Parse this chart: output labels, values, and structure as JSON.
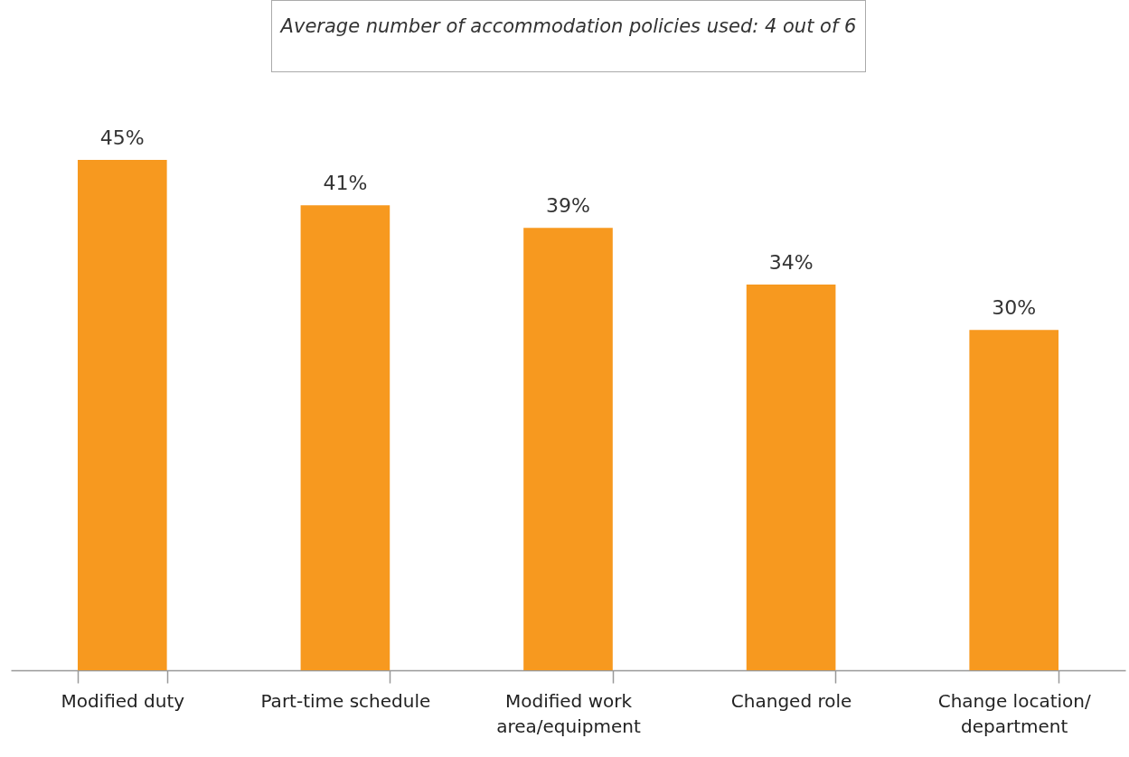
{
  "chart_data": {
    "type": "bar",
    "annotations": [
      "Average number of accommodation policies used: 4 out of 6"
    ],
    "categories": [
      "Modified duty",
      "Part-time schedule",
      "Modified work area/equipment",
      "Changed role",
      "Change location/ department"
    ],
    "values": [
      45,
      41,
      39,
      34,
      30
    ],
    "value_labels": [
      "45%",
      "41%",
      "39%",
      "34%",
      "30%"
    ],
    "color": "#f7991f"
  }
}
